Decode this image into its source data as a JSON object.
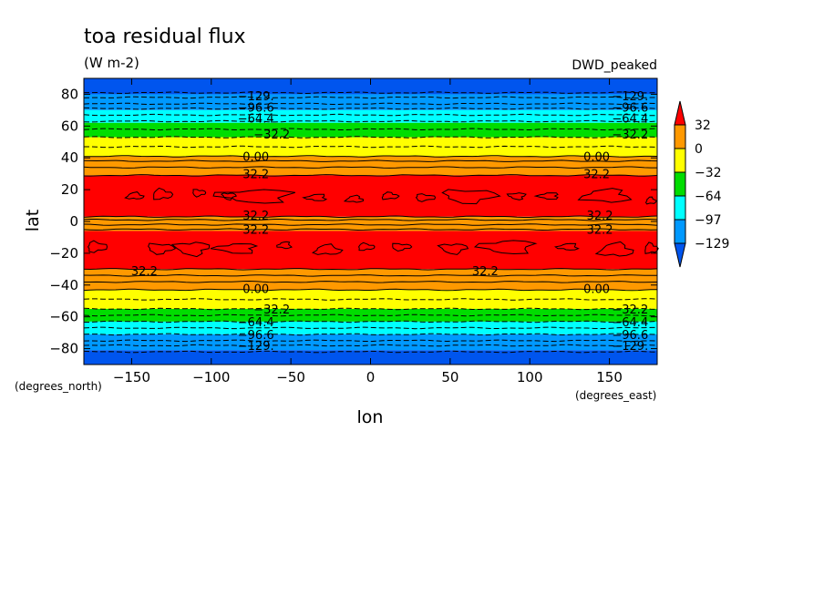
{
  "chart_data": {
    "type": "contour",
    "title": "toa residual flux",
    "units": "(W m-2)",
    "model_label": "DWD_peaked",
    "xlabel": "lon",
    "ylabel": "lat",
    "x_units_label": "(degrees_east)",
    "y_units_label": "(degrees_north)",
    "xlim": [
      -180,
      180
    ],
    "ylim": [
      -90,
      90
    ],
    "x_ticks": [
      -150,
      -100,
      -50,
      0,
      50,
      100,
      150
    ],
    "x_tick_labels": [
      "−150",
      "−100",
      "−50",
      "0",
      "50",
      "100",
      "150"
    ],
    "y_ticks": [
      80,
      60,
      40,
      20,
      0,
      -20,
      -40,
      -60,
      -80
    ],
    "y_tick_labels": [
      "80",
      "60",
      "40",
      "20",
      "0",
      "−20",
      "−40",
      "−60",
      "−80"
    ],
    "colorbar": {
      "levels": [
        32,
        0,
        -32,
        -64,
        -97,
        -129
      ],
      "level_labels": [
        "32",
        "0",
        "−32",
        "−64",
        "−97",
        "−129"
      ],
      "colors": [
        "#ff0000",
        "#ff9900",
        "#ffff00",
        "#00dd00",
        "#00ffff",
        "#0099ff",
        "#0055ee"
      ],
      "extend": "both"
    },
    "bands": [
      {
        "lat_min": 80,
        "lat_max": 90,
        "color": "#0055ee"
      },
      {
        "lat_min": 70,
        "lat_max": 80,
        "color": "#0099ff"
      },
      {
        "lat_min": 62,
        "lat_max": 70,
        "color": "#00ffff"
      },
      {
        "lat_min": 53,
        "lat_max": 62,
        "color": "#00dd00"
      },
      {
        "lat_min": 41,
        "lat_max": 53,
        "color": "#ffff00"
      },
      {
        "lat_min": 29,
        "lat_max": 41,
        "color": "#ff9900"
      },
      {
        "lat_min": 3,
        "lat_max": 29,
        "color": "#ff0000"
      },
      {
        "lat_min": -6,
        "lat_max": 3,
        "color": "#ff9900"
      },
      {
        "lat_min": -30,
        "lat_max": -6,
        "color": "#ff0000"
      },
      {
        "lat_min": -43,
        "lat_max": -30,
        "color": "#ff9900"
      },
      {
        "lat_min": -55,
        "lat_max": -43,
        "color": "#ffff00"
      },
      {
        "lat_min": -63,
        "lat_max": -55,
        "color": "#00dd00"
      },
      {
        "lat_min": -71,
        "lat_max": -63,
        "color": "#00ffff"
      },
      {
        "lat_min": -81,
        "lat_max": -71,
        "color": "#0099ff"
      },
      {
        "lat_min": -90,
        "lat_max": -81,
        "color": "#0055ee"
      }
    ],
    "contour_lats": [
      {
        "lat": 81,
        "dashed": true
      },
      {
        "lat": 78,
        "dashed": true
      },
      {
        "lat": 74,
        "dashed": true
      },
      {
        "lat": 71,
        "dashed": true
      },
      {
        "lat": 67,
        "dashed": true
      },
      {
        "lat": 63,
        "dashed": true
      },
      {
        "lat": 58,
        "dashed": true
      },
      {
        "lat": 53,
        "dashed": true
      },
      {
        "lat": 47,
        "dashed": true
      },
      {
        "lat": 41,
        "dashed": false
      },
      {
        "lat": 38,
        "dashed": false
      },
      {
        "lat": 34,
        "dashed": false
      },
      {
        "lat": 29,
        "dashed": false
      },
      {
        "lat": 3,
        "dashed": false
      },
      {
        "lat": 1,
        "dashed": false
      },
      {
        "lat": -2,
        "dashed": false
      },
      {
        "lat": -5,
        "dashed": false
      },
      {
        "lat": -30,
        "dashed": false
      },
      {
        "lat": -34,
        "dashed": false
      },
      {
        "lat": -38,
        "dashed": false
      },
      {
        "lat": -43,
        "dashed": false
      },
      {
        "lat": -49,
        "dashed": true
      },
      {
        "lat": -55,
        "dashed": true
      },
      {
        "lat": -59,
        "dashed": true
      },
      {
        "lat": -63,
        "dashed": true
      },
      {
        "lat": -67,
        "dashed": true
      },
      {
        "lat": -71,
        "dashed": true
      },
      {
        "lat": -75,
        "dashed": true
      },
      {
        "lat": -78,
        "dashed": true
      },
      {
        "lat": -82,
        "dashed": true
      }
    ],
    "contour_labels": [
      {
        "lon": -72,
        "lat": 79,
        "text": "−129."
      },
      {
        "lon": -72,
        "lat": 72,
        "text": "−96.6"
      },
      {
        "lon": -72,
        "lat": 65,
        "text": "−64.4"
      },
      {
        "lon": -62,
        "lat": 55,
        "text": "−32.2"
      },
      {
        "lon": -72,
        "lat": 41,
        "text": "0.00"
      },
      {
        "lon": -72,
        "lat": 30,
        "text": "32.2"
      },
      {
        "lon": -72,
        "lat": 4,
        "text": "32.2"
      },
      {
        "lon": -72,
        "lat": -5,
        "text": "32.2"
      },
      {
        "lon": -142,
        "lat": -31,
        "text": "32.2"
      },
      {
        "lon": -72,
        "lat": -42,
        "text": "0.00"
      },
      {
        "lon": -62,
        "lat": -55,
        "text": "−32.2"
      },
      {
        "lon": -72,
        "lat": -63,
        "text": "−64.4"
      },
      {
        "lon": -72,
        "lat": -71,
        "text": "−96.6"
      },
      {
        "lon": -72,
        "lat": -78,
        "text": "−129."
      },
      {
        "lon": 163,
        "lat": 79,
        "text": "−129."
      },
      {
        "lon": 163,
        "lat": 72,
        "text": "−96.6"
      },
      {
        "lon": 163,
        "lat": 65,
        "text": "−64.4"
      },
      {
        "lon": 163,
        "lat": 55,
        "text": "−32.2"
      },
      {
        "lon": 142,
        "lat": 41,
        "text": "0.00"
      },
      {
        "lon": 142,
        "lat": 30,
        "text": "32.2"
      },
      {
        "lon": 144,
        "lat": 4,
        "text": "32.2"
      },
      {
        "lon": 144,
        "lat": -5,
        "text": "32.2"
      },
      {
        "lon": 72,
        "lat": -31,
        "text": "32.2"
      },
      {
        "lon": 142,
        "lat": -42,
        "text": "0.00"
      },
      {
        "lon": 163,
        "lat": -55,
        "text": "−32.2"
      },
      {
        "lon": 163,
        "lat": -63,
        "text": "−64.4"
      },
      {
        "lon": 163,
        "lat": -71,
        "text": "−96.6"
      },
      {
        "lon": 163,
        "lat": -78,
        "text": "−129."
      }
    ],
    "blobs": [
      {
        "lon": -148,
        "lat": 16,
        "w": 5,
        "h": 2
      },
      {
        "lon": -131,
        "lat": 17,
        "w": 6,
        "h": 3
      },
      {
        "lon": -108,
        "lat": 18,
        "w": 4,
        "h": 2
      },
      {
        "lon": -89,
        "lat": 16,
        "w": 4,
        "h": 2
      },
      {
        "lon": -72,
        "lat": 16,
        "w": 22,
        "h": 4
      },
      {
        "lon": -34,
        "lat": 15,
        "w": 6,
        "h": 2
      },
      {
        "lon": -10,
        "lat": 14,
        "w": 5,
        "h": 2
      },
      {
        "lon": 12,
        "lat": 16,
        "w": 5,
        "h": 2
      },
      {
        "lon": 34,
        "lat": 15,
        "w": 6,
        "h": 2
      },
      {
        "lon": 62,
        "lat": 16,
        "w": 16,
        "h": 4
      },
      {
        "lon": 92,
        "lat": 16,
        "w": 5,
        "h": 2
      },
      {
        "lon": 112,
        "lat": 16,
        "w": 6,
        "h": 2
      },
      {
        "lon": 148,
        "lat": 16,
        "w": 14,
        "h": 4
      },
      {
        "lon": 176,
        "lat": 13,
        "w": 3,
        "h": 2
      },
      {
        "lon": -172,
        "lat": -16,
        "w": 6,
        "h": 3
      },
      {
        "lon": -132,
        "lat": -17,
        "w": 8,
        "h": 3
      },
      {
        "lon": -112,
        "lat": -17,
        "w": 10,
        "h": 4
      },
      {
        "lon": -84,
        "lat": -17,
        "w": 12,
        "h": 3
      },
      {
        "lon": -54,
        "lat": -15,
        "w": 4,
        "h": 2
      },
      {
        "lon": -27,
        "lat": -18,
        "w": 8,
        "h": 3
      },
      {
        "lon": -3,
        "lat": -16,
        "w": 5,
        "h": 2
      },
      {
        "lon": 19,
        "lat": -16,
        "w": 6,
        "h": 2
      },
      {
        "lon": 52,
        "lat": -17,
        "w": 8,
        "h": 3
      },
      {
        "lon": 86,
        "lat": -16,
        "w": 16,
        "h": 4
      },
      {
        "lon": 124,
        "lat": -16,
        "w": 6,
        "h": 2
      },
      {
        "lon": 154,
        "lat": -18,
        "w": 10,
        "h": 4
      },
      {
        "lon": 176,
        "lat": -17,
        "w": 4,
        "h": 3
      }
    ]
  }
}
